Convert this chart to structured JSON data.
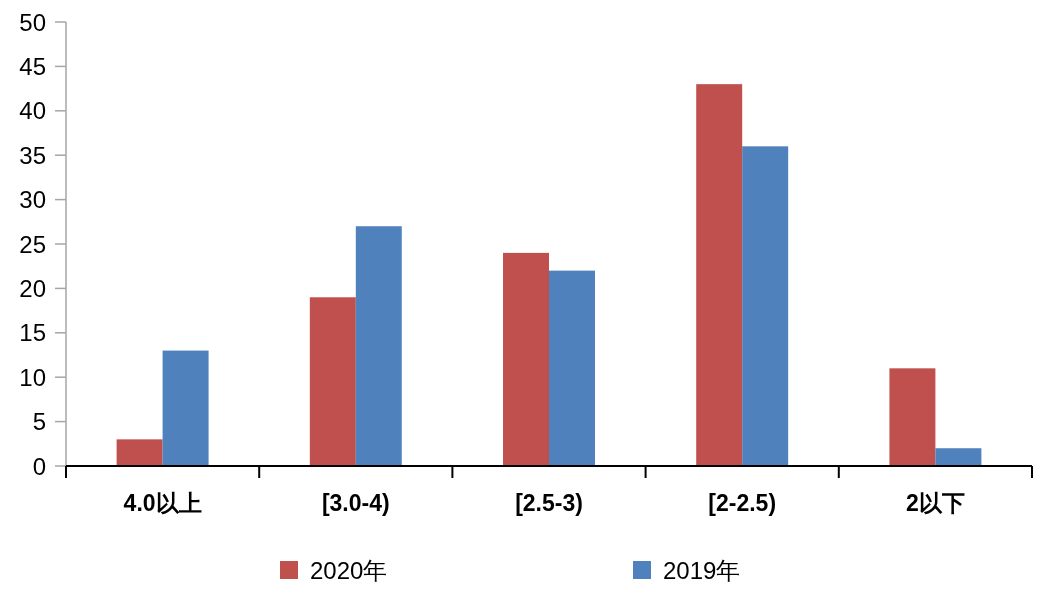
{
  "chart_data": {
    "type": "bar",
    "categories": [
      "4.0以上",
      "[3.0-4)",
      "[2.5-3)",
      "[2-2.5)",
      "2以下"
    ],
    "series": [
      {
        "name": "2020年",
        "color": "#c0504d",
        "values": [
          3,
          19,
          24,
          43,
          11
        ]
      },
      {
        "name": "2019年",
        "color": "#4f81bd",
        "values": [
          13,
          27,
          22,
          36,
          2
        ]
      }
    ],
    "ylim": [
      0,
      50
    ],
    "yticks": [
      0,
      5,
      10,
      15,
      20,
      25,
      30,
      35,
      40,
      45,
      50
    ],
    "grid": false,
    "legend": "bottom"
  }
}
